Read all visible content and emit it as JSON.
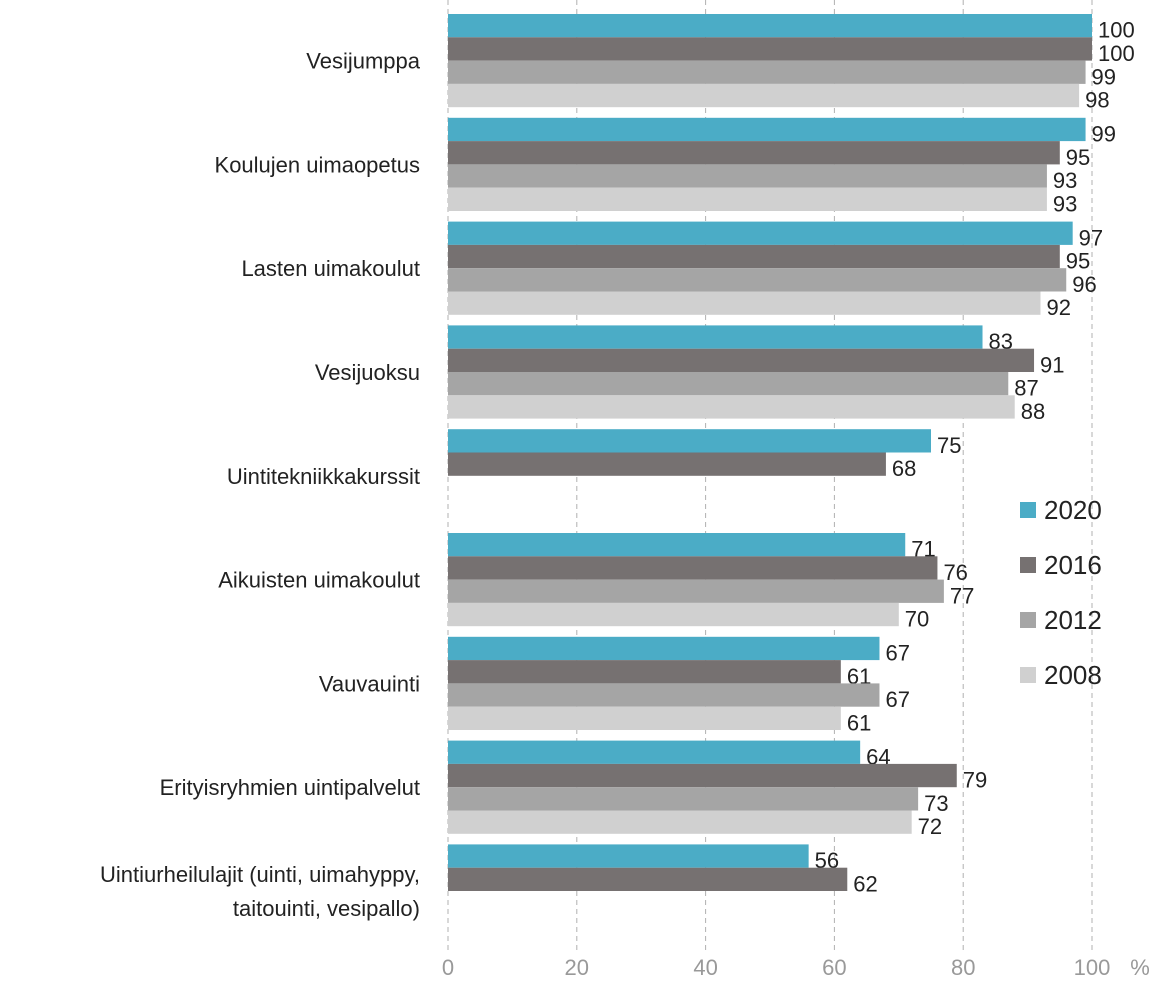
{
  "chart_data": {
    "type": "bar",
    "orientation": "horizontal",
    "categories": [
      "Vesijumppa",
      "Koulujen uimaopetus",
      "Lasten uimakoulut",
      "Vesijuoksu",
      "Uintitekniikkakurssit",
      "Aikuisten uimakoulut",
      "Vauvauinti",
      "Erityisryhmien uintipalvelut",
      "Uintiurheilulajit (uinti, uimahyppy,\ntaitouinti, vesipallo)"
    ],
    "series": [
      {
        "name": "2020",
        "color": "#4bacc6",
        "values": [
          100,
          99,
          97,
          83,
          75,
          71,
          67,
          64,
          56
        ]
      },
      {
        "name": "2016",
        "color": "#767171",
        "values": [
          100,
          95,
          95,
          91,
          68,
          76,
          61,
          79,
          62
        ]
      },
      {
        "name": "2012",
        "color": "#a5a5a5",
        "values": [
          99,
          93,
          96,
          87,
          null,
          77,
          67,
          73,
          null
        ]
      },
      {
        "name": "2008",
        "color": "#d0d0d0",
        "values": [
          98,
          93,
          92,
          88,
          null,
          70,
          61,
          72,
          null
        ]
      }
    ],
    "xlim": [
      0,
      100
    ],
    "xticks": [
      0,
      20,
      40,
      60,
      80,
      100
    ],
    "xlabel": "%",
    "grid": true,
    "legend": "right"
  }
}
